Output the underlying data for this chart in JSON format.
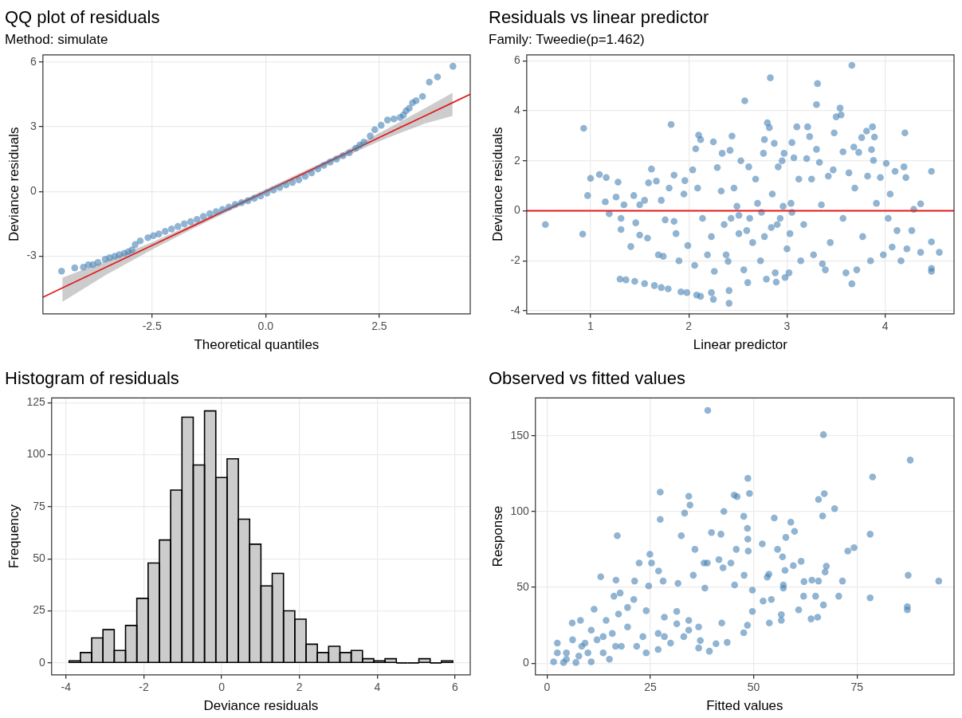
{
  "chart_data": [
    {
      "type": "scatter",
      "title": "QQ plot of residuals",
      "subtitle": "Method: simulate",
      "xlabel": "Theoretical quantiles",
      "ylabel": "Deviance residuals",
      "xlim": [
        -4.9,
        4.5
      ],
      "ylim": [
        -5.67,
        6.33
      ],
      "xticks": [
        -2.5,
        {
          "value": 0,
          "label": "0.0"
        },
        2.5
      ],
      "yticks": [
        -3,
        0,
        3,
        6
      ],
      "grid": true,
      "marker": "circle",
      "series": [
        {
          "type": "line",
          "marker": "none",
          "color": "#e41a1c",
          "x": [
            -4.9,
            -4.47,
            -3.5,
            -2.5,
            -1.5,
            0,
            1.5,
            2.5,
            3.5,
            4.11,
            4.5
          ],
          "values": [
            -4.9,
            -4.47,
            -3.5,
            -2.5,
            -1.5,
            0,
            1.5,
            2.5,
            3.5,
            4.11,
            4.5
          ],
          "lower": [
            null,
            -5.11,
            -3.85,
            -2.7,
            -1.62,
            -0.1,
            1.38,
            2.33,
            3.15,
            3.5,
            null
          ],
          "upper": [
            null,
            -4.0,
            -3.2,
            -2.35,
            -1.4,
            0.1,
            1.6,
            2.7,
            3.85,
            4.57,
            null
          ]
        },
        {
          "type": "scatter",
          "color": "#4682b4",
          "x": [
            -4.49,
            -4.2,
            -4.01,
            -3.9,
            -3.8,
            -3.69,
            -3.53,
            -3.43,
            -3.32,
            -3.22,
            -3.11,
            -3.02,
            -2.94,
            -2.87,
            -2.76,
            -2.59,
            -2.47,
            -2.35,
            -2.21,
            -2.07,
            -1.93,
            -1.79,
            -1.65,
            -1.51,
            -1.37,
            -1.23,
            -1.09,
            -0.95,
            -0.81,
            -0.67,
            -0.53,
            -0.39,
            -0.25,
            -0.11,
            0.03,
            0.17,
            0.31,
            0.45,
            0.59,
            0.73,
            0.87,
            1.01,
            1.15,
            1.28,
            1.42,
            1.56,
            1.7,
            1.84,
            1.98,
            2.07,
            2.16,
            2.3,
            2.4,
            2.54,
            2.68,
            2.82,
            2.96,
            3.03,
            3.09,
            3.16,
            3.23,
            3.31,
            3.45,
            3.6,
            3.78,
            4.12
          ],
          "values": [
            -3.69,
            -3.54,
            -3.51,
            -3.4,
            -3.39,
            -3.29,
            -3.14,
            -3.07,
            -3.0,
            -2.93,
            -2.86,
            -2.79,
            -2.71,
            -2.46,
            -2.29,
            -2.14,
            -2.05,
            -1.97,
            -1.85,
            -1.74,
            -1.62,
            -1.5,
            -1.4,
            -1.29,
            -1.16,
            -1.03,
            -0.93,
            -0.83,
            -0.72,
            -0.6,
            -0.52,
            -0.43,
            -0.32,
            -0.21,
            -0.07,
            0.07,
            0.19,
            0.31,
            0.42,
            0.54,
            0.7,
            0.86,
            1.04,
            1.21,
            1.36,
            1.5,
            1.65,
            1.79,
            2.0,
            2.15,
            2.29,
            2.57,
            2.86,
            3.07,
            3.31,
            3.36,
            3.43,
            3.54,
            3.74,
            3.86,
            4.11,
            4.21,
            4.4,
            5.07,
            5.31,
            5.8
          ]
        }
      ]
    },
    {
      "type": "scatter",
      "title": "Residuals vs linear predictor",
      "subtitle": "Family: Tweedie(p=1.462)",
      "xlabel": "Linear predictor",
      "ylabel": "Deviance residuals",
      "xlim": [
        0.35,
        4.7
      ],
      "ylim": [
        -4.12,
        6.24
      ],
      "xticks": [
        1,
        2,
        3,
        4
      ],
      "yticks": [
        -4,
        -2,
        0,
        2,
        4,
        6
      ],
      "grid": true,
      "marker": "circle",
      "ref_lines": [
        {
          "axis": "y",
          "value": 0,
          "color": "#e41a1c"
        }
      ],
      "series": [
        {
          "type": "scatter",
          "color": "#4682b4",
          "x": [
            0.54,
            0.93,
            0.92,
            0.97,
            1.0,
            1.09,
            1.16,
            1.15,
            1.19,
            1.28,
            1.26,
            1.31,
            1.31,
            1.34,
            1.41,
            1.3,
            1.36,
            1.45,
            1.55,
            1.65,
            1.72,
            1.79,
            1.92,
            1.98,
            2.08,
            2.12,
            2.23,
            2.25,
            2.41,
            2.41,
            1.44,
            1.5,
            1.55,
            1.46,
            1.5,
            1.58,
            1.62,
            1.59,
            1.67,
            1.69,
            1.74,
            1.72,
            1.76,
            1.8,
            1.82,
            1.85,
            1.85,
            1.87,
            1.9,
            1.95,
            1.96,
            1.99,
            2.06,
            2.07,
            2.1,
            2.12,
            2.04,
            2.09,
            2.14,
            2.19,
            2.25,
            2.23,
            2.26,
            2.29,
            2.33,
            2.34,
            2.36,
            2.38,
            2.4,
            2.42,
            2.44,
            2.46,
            2.49,
            2.51,
            2.53,
            2.56,
            2.57,
            2.6,
            2.61,
            2.62,
            2.65,
            2.68,
            2.7,
            2.73,
            2.76,
            2.77,
            2.79,
            2.8,
            2.82,
            2.83,
            2.84,
            2.85,
            2.87,
            2.88,
            2.89,
            2.91,
            2.93,
            2.95,
            2.97,
            2.98,
            3.0,
            3.02,
            3.03,
            3.04,
            3.05,
            3.07,
            3.1,
            3.12,
            3.14,
            3.17,
            3.2,
            3.21,
            3.23,
            3.25,
            3.27,
            3.3,
            3.31,
            3.3,
            3.33,
            3.35,
            3.36,
            3.39,
            3.42,
            3.44,
            3.47,
            3.48,
            3.5,
            3.54,
            3.55,
            3.57,
            3.57,
            3.6,
            3.63,
            3.66,
            3.66,
            3.68,
            3.69,
            3.71,
            3.73,
            3.76,
            3.77,
            3.81,
            3.82,
            3.85,
            3.86,
            3.87,
            3.88,
            3.89,
            3.91,
            3.95,
            3.98,
            4.01,
            4.03,
            4.05,
            4.07,
            4.1,
            4.12,
            4.16,
            4.19,
            4.2,
            4.21,
            4.22,
            4.27,
            4.29,
            4.36,
            4.36,
            4.47,
            4.47,
            4.47,
            4.47,
            4.55,
            2.74,
            2.9,
            2.59,
            3.05,
            2.51,
            2.77,
            2.96,
            2.43
          ],
          "values": [
            -0.55,
            3.3,
            -0.93,
            0.61,
            1.3,
            1.45,
            1.33,
            0.36,
            -0.12,
            1.15,
            0.55,
            -0.3,
            -0.75,
            0.24,
            -1.43,
            -2.73,
            -2.76,
            -2.82,
            -2.91,
            -2.99,
            -3.07,
            -3.12,
            -3.24,
            -3.27,
            -3.37,
            -3.42,
            -3.27,
            -3.54,
            -3.19,
            -3.7,
            0.61,
            0.24,
            0.42,
            -0.48,
            -0.97,
            -1.09,
            1.67,
            1.12,
            1.19,
            -1.76,
            -1.82,
            0.42,
            -0.36,
            0.91,
            3.45,
            1.43,
            -0.42,
            -0.91,
            -2.0,
            0.67,
            1.21,
            -1.39,
            -2.18,
            2.48,
            3.03,
            2.85,
            1.64,
            0.91,
            -0.3,
            -1.76,
            2.76,
            -1.03,
            -2.42,
            1.73,
            0.79,
            2.3,
            -0.55,
            -1.76,
            -2.02,
            2.42,
            2.99,
            0.91,
            0.18,
            -0.91,
            2.0,
            -2.36,
            4.4,
            -2.87,
            1.76,
            -0.3,
            -1.27,
            1.27,
            0.3,
            -2.0,
            2.3,
            2.85,
            -2.73,
            3.52,
            3.33,
            5.32,
            -0.67,
            0.67,
            2.7,
            -2.48,
            -2.85,
            1.76,
            -0.3,
            2.0,
            2.3,
            -2.67,
            -1.52,
            -2.48,
            -0.91,
            0.3,
            2.73,
            2.12,
            3.36,
            1.27,
            -2.0,
            -0.55,
            2.09,
            3.36,
            2.97,
            1.27,
            -1.76,
            2.46,
            5.09,
            4.25,
            1.94,
            0.24,
            -2.12,
            -2.36,
            1.39,
            -1.27,
            1.64,
            3.12,
            3.76,
            4.11,
            3.84,
            -0.3,
            2.36,
            -2.48,
            1.52,
            5.82,
            -2.92,
            2.55,
            0.91,
            -2.36,
            2.34,
            2.93,
            -1.03,
            3.19,
            1.39,
            -2.0,
            2.45,
            3.36,
            2.02,
            2.95,
            0.3,
            1.33,
            -1.76,
            1.9,
            -0.3,
            0.67,
            -1.45,
            1.58,
            -0.79,
            -2.0,
            1.76,
            3.12,
            1.33,
            -1.52,
            -0.79,
            0.06,
            -1.66,
            0.28,
            -1.24,
            -2.3,
            -2.42,
            1.58,
            -1.66,
            -0.06,
            -0.55,
            -0.79,
            -0.06,
            -0.18,
            -1.03,
            0.18,
            -0.3
          ]
        }
      ]
    },
    {
      "type": "histogram",
      "title": "Histogram of residuals",
      "xlabel": "Deviance residuals",
      "ylabel": "Frequency",
      "xlim": [
        -4.37,
        6.39
      ],
      "ylim": [
        -5.7,
        127.2
      ],
      "xticks": [
        -4,
        -2,
        0,
        2,
        4,
        6
      ],
      "yticks": [
        0,
        25,
        50,
        75,
        100,
        125
      ],
      "grid": true,
      "color": "#cccccc",
      "bins": [
        -3.92,
        -3.63,
        -3.34,
        -3.05,
        -2.76,
        -2.47,
        -2.18,
        -1.89,
        -1.6,
        -1.31,
        -1.02,
        -0.73,
        -0.44,
        -0.15,
        0.14,
        0.43,
        0.72,
        1.01,
        1.3,
        1.59,
        1.88,
        2.17,
        2.46,
        2.75,
        3.04,
        3.33,
        3.62,
        3.91,
        4.2,
        4.49,
        4.78,
        5.07,
        5.36,
        5.65,
        5.94
      ],
      "values": [
        1,
        5,
        12,
        16,
        6,
        18,
        31,
        48,
        59,
        83,
        118,
        95,
        121,
        89,
        98,
        69,
        57,
        37,
        43,
        25,
        21,
        9,
        5,
        8,
        5,
        6,
        2,
        1,
        2,
        0,
        0,
        2,
        0,
        1
      ]
    },
    {
      "type": "scatter",
      "title": "Observed vs fitted values",
      "xlabel": "Fitted values",
      "ylabel": "Response",
      "xlim": [
        -2.81,
        98.5
      ],
      "ylim": [
        -7.7,
        175
      ],
      "xticks": [
        0,
        25,
        50,
        75
      ],
      "yticks": [
        0,
        50,
        100,
        150
      ],
      "grid": true,
      "marker": "circle",
      "series": [
        {
          "type": "scatter",
          "color": "#4682b4",
          "x": [
            38.9,
            66.9,
            87.9,
            78.8,
            48.6,
            49.0,
            27.4,
            34.3,
            34.6,
            45.3,
            46.0,
            67.1,
            65.7,
            69.6,
            33.3,
            42.8,
            27.4,
            66.7,
            47.6,
            55.0,
            59.0,
            59.9,
            17.0,
            32.5,
            39.8,
            42.1,
            48.5,
            48.6,
            78.2,
            57.8,
            52.1,
            48.7,
            35.8,
            45.8,
            55.8,
            72.8,
            74.3,
            24.9,
            25.3,
            22.3,
            38.0,
            38.8,
            41.6,
            44.5,
            57.0,
            59.6,
            61.5,
            67.6,
            67.3,
            27.0,
            35.4,
            42.6,
            47.7,
            53.7,
            57.6,
            62.2,
            64.1,
            65.7,
            71.5,
            87.4,
            94.8,
            13.0,
            16.7,
            21.2,
            24.6,
            28.1,
            31.7,
            38.2,
            45.4,
            49.7,
            53.3,
            57.2,
            57.2,
            70.6,
            78.2,
            65.0,
            62.1,
            66.9,
            87.2,
            87.2,
            60.9,
            56.7,
            56.7,
            53.8,
            63.9,
            65.5,
            52.3,
            54.3,
            49.7,
            47.6,
            48.5,
            43.6,
            40.9,
            39.3,
            36.7,
            37.1,
            42.3,
            34.3,
            31.4,
            28.4,
            24.0,
            21.0,
            17.7,
            16.2,
            11.4,
            8.1,
            6.1,
            2.5,
            1.6,
            4.0,
            7.0,
            10.7,
            4.7,
            8.4,
            12.1,
            15.8,
            19.5,
            13.6,
            18.0,
            21.7,
            24.0,
            26.9,
            29.9,
            33.1,
            36.7,
            26.9,
            23.2,
            17.3,
            19.5,
            14.3,
            10.7,
            6.2,
            4.7,
            7.7,
            9.9,
            15.1,
            16.6,
            13.6,
            9.2,
            2.5,
            28.4,
            34.3,
            31.4
          ],
          "values": [
            166.8,
            150.8,
            134.0,
            122.9,
            122.0,
            112.0,
            112.9,
            110.1,
            104.3,
            110.9,
            109.9,
            111.8,
            108.0,
            102.0,
            99.0,
            100.1,
            94.9,
            97.1,
            96.9,
            95.8,
            93.0,
            87.0,
            84.1,
            84.1,
            86.2,
            85.1,
            89.0,
            81.9,
            85.1,
            83.0,
            78.7,
            74.0,
            75.1,
            75.1,
            75.1,
            74.0,
            76.2,
            71.9,
            66.1,
            66.1,
            66.1,
            66.1,
            68.3,
            66.1,
            70.2,
            64.4,
            67.2,
            64.0,
            60.2,
            60.8,
            58.0,
            62.9,
            58.0,
            58.7,
            61.2,
            53.8,
            54.8,
            54.2,
            54.2,
            58.0,
            54.2,
            57.0,
            54.8,
            54.2,
            51.0,
            54.2,
            52.7,
            49.5,
            51.6,
            48.2,
            56.8,
            51.6,
            49.5,
            44.2,
            43.1,
            44.2,
            44.2,
            38.4,
            37.3,
            35.2,
            35.2,
            32.0,
            28.2,
            26.5,
            29.2,
            30.3,
            41.0,
            42.0,
            34.1,
            20.1,
            25.0,
            13.7,
            12.8,
            7.9,
            10.0,
            14.9,
            26.5,
            28.2,
            34.1,
            30.3,
            34.6,
            42.0,
            46.3,
            44.2,
            35.6,
            28.2,
            26.5,
            13.2,
            0.9,
            0.4,
            0.4,
            0.9,
            6.8,
            11.1,
            15.4,
            19.6,
            23.9,
            6.8,
            11.1,
            11.1,
            6.8,
            9.0,
            13.2,
            17.5,
            23.9,
            19.6,
            17.5,
            32.4,
            36.7,
            28.2,
            21.8,
            15.4,
            2.6,
            4.7,
            6.8,
            2.6,
            11.1,
            17.5,
            13.2,
            6.8,
            17.5,
            21.8,
            26.0
          ]
        }
      ]
    }
  ]
}
